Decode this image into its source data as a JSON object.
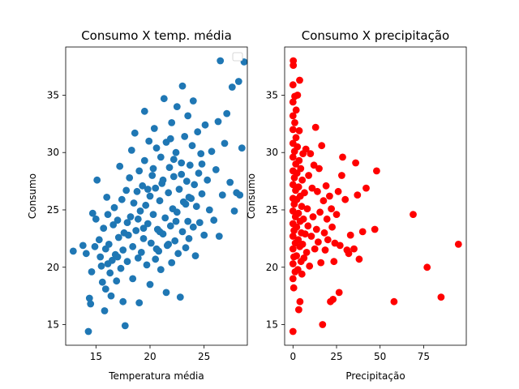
{
  "chart_data": [
    {
      "type": "scatter",
      "title": "Consumo X temp. média",
      "xlabel": "Temperatura média",
      "ylabel": "Consumo",
      "xlim": [
        12.2,
        29.0
      ],
      "ylim": [
        13.2,
        39.2
      ],
      "xticks": [
        15,
        20,
        25
      ],
      "yticks": [
        15,
        20,
        25,
        30,
        35
      ],
      "grid": false,
      "legend": {
        "visible": true,
        "placement": "top-right",
        "entries": []
      },
      "color": "#1f77b4",
      "points": [
        [
          12.9,
          21.4
        ],
        [
          13.8,
          21.9
        ],
        [
          14.1,
          21.2
        ],
        [
          14.3,
          14.4
        ],
        [
          14.4,
          17.3
        ],
        [
          14.5,
          16.8
        ],
        [
          14.6,
          19.6
        ],
        [
          14.7,
          24.7
        ],
        [
          14.9,
          21.8
        ],
        [
          15.0,
          24.2
        ],
        [
          15.1,
          27.6
        ],
        [
          15.3,
          22.4
        ],
        [
          15.4,
          20.9
        ],
        [
          15.5,
          20.1
        ],
        [
          15.6,
          18.7
        ],
        [
          15.7,
          23.4
        ],
        [
          15.8,
          16.2
        ],
        [
          15.9,
          18.1
        ],
        [
          15.9,
          21.6
        ],
        [
          16.0,
          26.1
        ],
        [
          16.1,
          20.3
        ],
        [
          16.1,
          24.6
        ],
        [
          16.2,
          22.0
        ],
        [
          16.3,
          19.5
        ],
        [
          16.4,
          17.5
        ],
        [
          16.5,
          20.6
        ],
        [
          16.6,
          23.7
        ],
        [
          16.7,
          25.2
        ],
        [
          16.8,
          21.1
        ],
        [
          16.9,
          18.8
        ],
        [
          17.0,
          20.9
        ],
        [
          17.0,
          24.1
        ],
        [
          17.1,
          22.6
        ],
        [
          17.2,
          28.8
        ],
        [
          17.3,
          19.9
        ],
        [
          17.4,
          25.9
        ],
        [
          17.5,
          17.0
        ],
        [
          17.5,
          21.5
        ],
        [
          17.6,
          23.0
        ],
        [
          17.7,
          14.9
        ],
        [
          17.8,
          26.7
        ],
        [
          17.9,
          20.5
        ],
        [
          18.0,
          22.8
        ],
        [
          18.1,
          27.8
        ],
        [
          18.2,
          24.4
        ],
        [
          18.3,
          30.2
        ],
        [
          18.4,
          21.8
        ],
        [
          18.4,
          19.0
        ],
        [
          18.5,
          25.6
        ],
        [
          18.6,
          31.7
        ],
        [
          18.7,
          23.2
        ],
        [
          18.8,
          26.6
        ],
        [
          18.9,
          20.8
        ],
        [
          19.0,
          28.4
        ],
        [
          19.0,
          16.9
        ],
        [
          19.1,
          24.9
        ],
        [
          19.2,
          21.3
        ],
        [
          19.3,
          27.1
        ],
        [
          19.4,
          22.5
        ],
        [
          19.5,
          29.3
        ],
        [
          19.5,
          33.6
        ],
        [
          19.6,
          25.4
        ],
        [
          19.7,
          20.2
        ],
        [
          19.8,
          23.8
        ],
        [
          19.9,
          31.0
        ],
        [
          20.0,
          26.2
        ],
        [
          20.0,
          18.5
        ],
        [
          20.1,
          22.1
        ],
        [
          20.2,
          28.0
        ],
        [
          20.3,
          24.6
        ],
        [
          20.4,
          32.1
        ],
        [
          20.5,
          20.7
        ],
        [
          20.5,
          26.9
        ],
        [
          20.6,
          30.4
        ],
        [
          20.7,
          23.3
        ],
        [
          20.8,
          21.4
        ],
        [
          20.9,
          25.8
        ],
        [
          21.0,
          29.6
        ],
        [
          21.0,
          19.8
        ],
        [
          21.1,
          27.3
        ],
        [
          21.2,
          22.9
        ],
        [
          21.3,
          34.7
        ],
        [
          21.4,
          24.3
        ],
        [
          21.5,
          17.8
        ],
        [
          21.5,
          30.9
        ],
        [
          21.6,
          21.9
        ],
        [
          21.7,
          26.5
        ],
        [
          21.8,
          28.7
        ],
        [
          21.9,
          23.6
        ],
        [
          22.0,
          32.6
        ],
        [
          22.0,
          20.4
        ],
        [
          22.1,
          25.1
        ],
        [
          22.2,
          27.9
        ],
        [
          22.3,
          22.3
        ],
        [
          22.4,
          30.0
        ],
        [
          22.5,
          24.8
        ],
        [
          22.5,
          34.0
        ],
        [
          22.6,
          21.2
        ],
        [
          22.7,
          26.8
        ],
        [
          22.8,
          17.4
        ],
        [
          22.9,
          29.1
        ],
        [
          23.0,
          23.1
        ],
        [
          23.0,
          35.8
        ],
        [
          23.1,
          25.7
        ],
        [
          23.2,
          31.4
        ],
        [
          23.3,
          21.7
        ],
        [
          23.4,
          27.5
        ],
        [
          23.5,
          24.0
        ],
        [
          23.5,
          33.2
        ],
        [
          23.6,
          22.5
        ],
        [
          23.7,
          28.9
        ],
        [
          23.8,
          26.0
        ],
        [
          23.9,
          30.6
        ],
        [
          24.0,
          23.5
        ],
        [
          24.0,
          34.5
        ],
        [
          24.1,
          27.2
        ],
        [
          24.2,
          21.0
        ],
        [
          24.3,
          25.3
        ],
        [
          24.4,
          31.8
        ],
        [
          24.5,
          28.2
        ],
        [
          24.6,
          23.9
        ],
        [
          24.7,
          29.9
        ],
        [
          24.8,
          26.4
        ],
        [
          25.0,
          22.8
        ],
        [
          25.1,
          32.4
        ],
        [
          25.3,
          27.6
        ],
        [
          25.5,
          25.0
        ],
        [
          25.7,
          30.1
        ],
        [
          25.9,
          24.1
        ],
        [
          26.1,
          28.5
        ],
        [
          26.3,
          32.7
        ],
        [
          26.4,
          22.7
        ],
        [
          26.5,
          38.0
        ],
        [
          26.7,
          26.3
        ],
        [
          26.9,
          30.8
        ],
        [
          27.1,
          33.4
        ],
        [
          27.4,
          27.4
        ],
        [
          27.6,
          35.7
        ],
        [
          27.8,
          24.9
        ],
        [
          28.0,
          26.5
        ],
        [
          28.2,
          36.2
        ],
        [
          28.3,
          26.3
        ],
        [
          28.5,
          30.4
        ],
        [
          28.7,
          37.9
        ],
        [
          21.2,
          27.6
        ],
        [
          19.8,
          26.8
        ],
        [
          22.4,
          24.0
        ],
        [
          20.9,
          23.1
        ],
        [
          23.6,
          26.1
        ],
        [
          18.9,
          24.2
        ],
        [
          21.7,
          22.0
        ],
        [
          20.3,
          28.6
        ],
        [
          22.9,
          28.1
        ],
        [
          24.8,
          29.0
        ],
        [
          19.4,
          23.4
        ],
        [
          21.9,
          31.2
        ],
        [
          17.9,
          23.9
        ],
        [
          23.3,
          25.5
        ],
        [
          20.6,
          21.6
        ],
        [
          22.2,
          29.4
        ]
      ]
    },
    {
      "type": "scatter",
      "title": "Consumo X precipitação",
      "xlabel": "Precipitação",
      "ylabel": "Consumo",
      "xlim": [
        -4.8,
        99.5
      ],
      "ylim": [
        13.2,
        39.2
      ],
      "xticks": [
        0,
        25,
        50,
        75
      ],
      "yticks": [
        15,
        20,
        25,
        30,
        35
      ],
      "grid": false,
      "color": "#ff0000",
      "points": [
        [
          0.0,
          14.4
        ],
        [
          0.0,
          19.0
        ],
        [
          0.0,
          20.3
        ],
        [
          0.0,
          21.6
        ],
        [
          0.0,
          22.7
        ],
        [
          0.0,
          23.8
        ],
        [
          0.0,
          24.9
        ],
        [
          0.0,
          26.0
        ],
        [
          0.0,
          27.2
        ],
        [
          0.0,
          28.4
        ],
        [
          0.0,
          29.6
        ],
        [
          0.0,
          30.8
        ],
        [
          0.0,
          32.0
        ],
        [
          0.0,
          33.2
        ],
        [
          0.0,
          34.4
        ],
        [
          0.0,
          35.9
        ],
        [
          0.2,
          37.6
        ],
        [
          0.2,
          38.0
        ],
        [
          0.4,
          18.2
        ],
        [
          0.5,
          20.9
        ],
        [
          0.6,
          23.2
        ],
        [
          0.7,
          25.5
        ],
        [
          0.8,
          27.8
        ],
        [
          0.9,
          30.1
        ],
        [
          1.0,
          32.6
        ],
        [
          1.0,
          34.9
        ],
        [
          1.2,
          19.6
        ],
        [
          1.3,
          22.1
        ],
        [
          1.4,
          24.4
        ],
        [
          1.5,
          26.7
        ],
        [
          1.6,
          29.0
        ],
        [
          1.7,
          31.3
        ],
        [
          1.8,
          33.7
        ],
        [
          2.0,
          21.0
        ],
        [
          2.1,
          23.5
        ],
        [
          2.2,
          25.9
        ],
        [
          2.3,
          28.2
        ],
        [
          2.5,
          30.5
        ],
        [
          2.6,
          35.0
        ],
        [
          2.8,
          19.8
        ],
        [
          3.0,
          22.4
        ],
        [
          3.1,
          24.7
        ],
        [
          3.2,
          27.0
        ],
        [
          3.3,
          16.3
        ],
        [
          3.5,
          29.3
        ],
        [
          3.6,
          31.9
        ],
        [
          3.8,
          36.3
        ],
        [
          3.9,
          21.8
        ],
        [
          4.0,
          17.0
        ],
        [
          4.1,
          24.0
        ],
        [
          4.2,
          26.2
        ],
        [
          4.4,
          28.6
        ],
        [
          4.6,
          20.5
        ],
        [
          4.8,
          23.0
        ],
        [
          5.0,
          25.3
        ],
        [
          5.1,
          19.4
        ],
        [
          5.3,
          27.6
        ],
        [
          5.5,
          22.0
        ],
        [
          5.7,
          29.9
        ],
        [
          6.0,
          24.2
        ],
        [
          6.3,
          20.8
        ],
        [
          6.6,
          26.5
        ],
        [
          7.0,
          22.9
        ],
        [
          7.4,
          30.3
        ],
        [
          7.8,
          21.3
        ],
        [
          8.2,
          25.1
        ],
        [
          8.6,
          23.6
        ],
        [
          9.0,
          28.0
        ],
        [
          9.5,
          20.1
        ],
        [
          10.0,
          29.9
        ],
        [
          10.5,
          22.7
        ],
        [
          11.0,
          26.9
        ],
        [
          11.5,
          24.4
        ],
        [
          12.0,
          28.9
        ],
        [
          12.5,
          21.6
        ],
        [
          13.0,
          32.2
        ],
        [
          13.5,
          23.3
        ],
        [
          14.0,
          26.6
        ],
        [
          14.5,
          22.2
        ],
        [
          15.0,
          28.6
        ],
        [
          15.5,
          24.8
        ],
        [
          16.0,
          20.4
        ],
        [
          16.5,
          30.6
        ],
        [
          17.0,
          15.0
        ],
        [
          17.5,
          25.8
        ],
        [
          18.0,
          23.0
        ],
        [
          18.5,
          21.5
        ],
        [
          19.0,
          27.1
        ],
        [
          19.5,
          24.2
        ],
        [
          20.0,
          22.4
        ],
        [
          21.0,
          26.2
        ],
        [
          21.5,
          17.0
        ],
        [
          22.0,
          25.1
        ],
        [
          22.5,
          23.5
        ],
        [
          23.0,
          17.2
        ],
        [
          23.5,
          20.5
        ],
        [
          24.0,
          22.1
        ],
        [
          25.0,
          24.6
        ],
        [
          26.0,
          26.6
        ],
        [
          26.5,
          17.8
        ],
        [
          27.0,
          21.9
        ],
        [
          28.0,
          28.0
        ],
        [
          28.5,
          29.6
        ],
        [
          30.0,
          25.9
        ],
        [
          31.0,
          21.5
        ],
        [
          32.0,
          21.2
        ],
        [
          33.0,
          22.8
        ],
        [
          35.0,
          21.6
        ],
        [
          36.0,
          29.1
        ],
        [
          37.0,
          26.3
        ],
        [
          38.0,
          20.7
        ],
        [
          40.0,
          23.1
        ],
        [
          42.0,
          26.9
        ],
        [
          47.0,
          23.3
        ],
        [
          48.0,
          28.4
        ],
        [
          58.0,
          17.0
        ],
        [
          69.0,
          24.6
        ],
        [
          77.0,
          20.0
        ],
        [
          85.0,
          17.4
        ],
        [
          95.0,
          22.0
        ]
      ]
    }
  ]
}
